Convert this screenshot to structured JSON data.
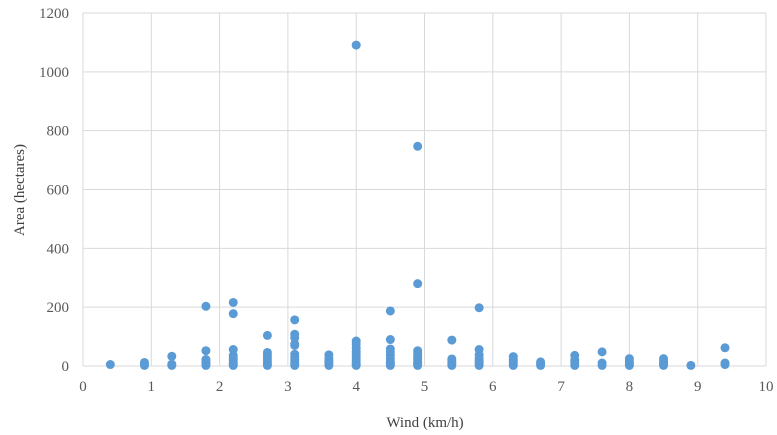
{
  "chart_data": {
    "type": "scatter",
    "title": "",
    "xlabel": "Wind (km/h)",
    "ylabel": "Area (hectares)",
    "xlim": [
      0,
      10
    ],
    "ylim": [
      0,
      1200
    ],
    "x_ticks": [
      "0",
      "1",
      "2",
      "3",
      "4",
      "5",
      "6",
      "7",
      "8",
      "9",
      "10"
    ],
    "y_ticks": [
      "0",
      "200",
      "400",
      "600",
      "800",
      "1000",
      "1200"
    ],
    "grid": "on",
    "legend": "none",
    "point_color": "#5b9bd5",
    "series": [
      {
        "points": [
          [
            0.4,
            5
          ],
          [
            0.9,
            2
          ],
          [
            0.9,
            8
          ],
          [
            0.9,
            12
          ],
          [
            1.3,
            2
          ],
          [
            1.3,
            6
          ],
          [
            1.3,
            33
          ],
          [
            1.8,
            2
          ],
          [
            1.8,
            8
          ],
          [
            1.8,
            15
          ],
          [
            1.8,
            22
          ],
          [
            1.8,
            52
          ],
          [
            1.8,
            203
          ],
          [
            2.2,
            2
          ],
          [
            2.2,
            6
          ],
          [
            2.2,
            12
          ],
          [
            2.2,
            20
          ],
          [
            2.2,
            28
          ],
          [
            2.2,
            36
          ],
          [
            2.2,
            56
          ],
          [
            2.2,
            178
          ],
          [
            2.2,
            216
          ],
          [
            2.7,
            2
          ],
          [
            2.7,
            8
          ],
          [
            2.7,
            16
          ],
          [
            2.7,
            25
          ],
          [
            2.7,
            35
          ],
          [
            2.7,
            46
          ],
          [
            2.7,
            104
          ],
          [
            3.1,
            2
          ],
          [
            3.1,
            6
          ],
          [
            3.1,
            12
          ],
          [
            3.1,
            20
          ],
          [
            3.1,
            30
          ],
          [
            3.1,
            40
          ],
          [
            3.1,
            70
          ],
          [
            3.1,
            75
          ],
          [
            3.1,
            96
          ],
          [
            3.1,
            108
          ],
          [
            3.1,
            157
          ],
          [
            3.6,
            2
          ],
          [
            3.6,
            8
          ],
          [
            3.6,
            15
          ],
          [
            3.6,
            25
          ],
          [
            3.6,
            38
          ],
          [
            4.0,
            2
          ],
          [
            4.0,
            6
          ],
          [
            4.0,
            12
          ],
          [
            4.0,
            20
          ],
          [
            4.0,
            30
          ],
          [
            4.0,
            40
          ],
          [
            4.0,
            50
          ],
          [
            4.0,
            62
          ],
          [
            4.0,
            75
          ],
          [
            4.0,
            85
          ],
          [
            4.0,
            1091
          ],
          [
            4.5,
            2
          ],
          [
            4.5,
            8
          ],
          [
            4.5,
            15
          ],
          [
            4.5,
            25
          ],
          [
            4.5,
            38
          ],
          [
            4.5,
            48
          ],
          [
            4.5,
            58
          ],
          [
            4.5,
            90
          ],
          [
            4.5,
            187
          ],
          [
            4.9,
            2
          ],
          [
            4.9,
            5
          ],
          [
            4.9,
            10
          ],
          [
            4.9,
            16
          ],
          [
            4.9,
            22
          ],
          [
            4.9,
            28
          ],
          [
            4.9,
            35
          ],
          [
            4.9,
            42
          ],
          [
            4.9,
            52
          ],
          [
            4.9,
            280
          ],
          [
            4.9,
            747
          ],
          [
            5.4,
            2
          ],
          [
            5.4,
            8
          ],
          [
            5.4,
            15
          ],
          [
            5.4,
            24
          ],
          [
            5.4,
            88
          ],
          [
            5.8,
            2
          ],
          [
            5.8,
            8
          ],
          [
            5.8,
            15
          ],
          [
            5.8,
            25
          ],
          [
            5.8,
            38
          ],
          [
            5.8,
            56
          ],
          [
            5.8,
            198
          ],
          [
            6.3,
            2
          ],
          [
            6.3,
            8
          ],
          [
            6.3,
            15
          ],
          [
            6.3,
            22
          ],
          [
            6.3,
            32
          ],
          [
            6.7,
            2
          ],
          [
            6.7,
            8
          ],
          [
            6.7,
            14
          ],
          [
            7.2,
            2
          ],
          [
            7.2,
            10
          ],
          [
            7.2,
            20
          ],
          [
            7.2,
            36
          ],
          [
            7.6,
            2
          ],
          [
            7.6,
            10
          ],
          [
            7.6,
            48
          ],
          [
            8.0,
            2
          ],
          [
            8.0,
            8
          ],
          [
            8.0,
            15
          ],
          [
            8.0,
            25
          ],
          [
            8.5,
            2
          ],
          [
            8.5,
            8
          ],
          [
            8.5,
            15
          ],
          [
            8.5,
            25
          ],
          [
            8.9,
            2
          ],
          [
            9.4,
            5
          ],
          [
            9.4,
            10
          ],
          [
            9.4,
            62
          ]
        ]
      }
    ]
  }
}
